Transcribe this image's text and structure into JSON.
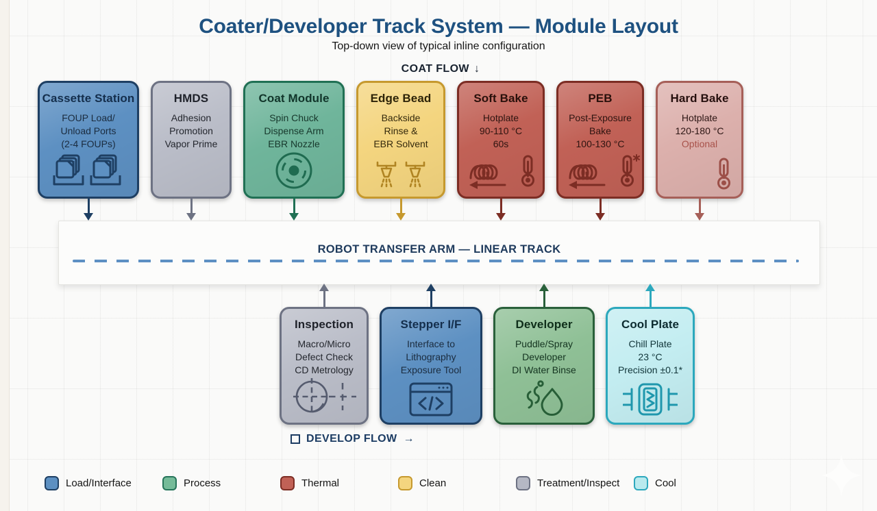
{
  "page": {
    "title": "Coater/Developer Track System — Module Layout",
    "subtitle": "Top-down view of typical inline configuration"
  },
  "flow_labels": {
    "coat": "COAT FLOW",
    "coat_arrow": "↓",
    "develop": "DEVELOP FLOW",
    "develop_arrow": "→"
  },
  "track": {
    "label": "ROBOT TRANSFER ARM — LINEAR TRACK",
    "dash_color": "#5d8fc3"
  },
  "top_modules": [
    {
      "id": "cassette-station",
      "title": "Cassette Station",
      "lines": [
        "FOUP Load/",
        "Unload Ports",
        "(2-4 FOUPs)"
      ],
      "icon": "foup-stack-icon",
      "width": 148,
      "colors": {
        "fill": "#5d90c2",
        "border": "#1e3f63",
        "title": "#142e4c",
        "text": "#1b2c3f",
        "icon": "#1e3f63"
      }
    },
    {
      "id": "hmds",
      "title": "HMDS",
      "lines": [
        "Adhesion",
        "Promotion",
        "Vapor Prime"
      ],
      "icon": "",
      "width": 118,
      "colors": {
        "fill": "#babdc8",
        "border": "#6d7283",
        "title": "#1f222a",
        "text": "#24272e",
        "icon": "#555b6e"
      }
    },
    {
      "id": "coat-module",
      "title": "Coat Module",
      "lines": [
        "Spin Chuck",
        "Dispense Arm",
        "EBR Nozzle"
      ],
      "icon": "spin-chuck-icon",
      "width": 148,
      "colors": {
        "fill": "#6fb59b",
        "border": "#207054",
        "title": "#11352a",
        "text": "#17382c",
        "icon": "#1f6b50"
      }
    },
    {
      "id": "edge-bead",
      "title": "Edge Bead",
      "lines": [
        "Backside",
        "Rinse &",
        "EBR Solvent"
      ],
      "icon": "spray-nozzles-icon",
      "width": 130,
      "colors": {
        "fill": "#f4d57f",
        "border": "#c6992e",
        "title": "#2d2308",
        "text": "#34290c",
        "icon": "#b08422"
      }
    },
    {
      "id": "soft-bake",
      "title": "Soft Bake",
      "lines": [
        "Hotplate",
        "90-110 °C",
        "60s"
      ],
      "icon": "bake-coil-icon",
      "width": 128,
      "colors": {
        "fill": "#c16156",
        "border": "#7c2d24",
        "title": "#29100b",
        "text": "#2e1410",
        "icon": "#7c2d24"
      }
    },
    {
      "id": "peb",
      "title": "PEB",
      "lines": [
        "Post-Exposure",
        "Bake",
        "100-130 °C"
      ],
      "icon": "bake-coil-asterisk-icon",
      "width": 128,
      "colors": {
        "fill": "#c16156",
        "border": "#7c2d24",
        "title": "#29100b",
        "text": "#2e1410",
        "icon": "#7c2d24"
      }
    },
    {
      "id": "hard-bake",
      "title": "Hard Bake",
      "lines": [
        "Hotplate",
        "120-180 °C"
      ],
      "note": {
        "text": "Optional",
        "color": "#a8524a"
      },
      "icon": "thermometer-icon",
      "width": 128,
      "colors": {
        "fill": "#dcb0ac",
        "border": "#a65f58",
        "title": "#26100e",
        "text": "#2d1614",
        "icon": "#9c4f48"
      }
    }
  ],
  "bottom_modules": [
    {
      "id": "inspection",
      "title": "Inspection",
      "lines": [
        "Macro/Micro",
        "Defect Check",
        "CD Metrology"
      ],
      "icon": "inspection-icon",
      "width": 130,
      "colors": {
        "fill": "#babdc8",
        "border": "#6d7283",
        "title": "#1f222a",
        "text": "#24272e",
        "icon": "#555b6e"
      }
    },
    {
      "id": "stepper-if",
      "title": "Stepper I/F",
      "lines": [
        "Interface to",
        "Lithography",
        "Exposure Tool"
      ],
      "icon": "code-window-icon",
      "width": 150,
      "colors": {
        "fill": "#5d90c2",
        "border": "#1e3f63",
        "title": "#142e4c",
        "text": "#1b2c3f",
        "icon": "#1e3f63"
      }
    },
    {
      "id": "developer",
      "title": "Developer",
      "lines": [
        "Puddle/Spray",
        "Developer",
        "DI Water Binse"
      ],
      "icon": "developer-drop-icon",
      "width": 148,
      "colors": {
        "fill": "#8fc096",
        "border": "#29603a",
        "title": "#0f2e1a",
        "text": "#143420",
        "icon": "#275e37"
      }
    },
    {
      "id": "cool-plate",
      "title": "Cool Plate",
      "lines": [
        "Chill Plate",
        "23 °C",
        "Precision ±0.1*"
      ],
      "icon": "cool-chip-icon",
      "width": 130,
      "colors": {
        "fill": "#c3edf1",
        "border": "#2ca8bd",
        "title": "#0c2b30",
        "text": "#113539",
        "icon": "#1f97ad"
      }
    }
  ],
  "legend": [
    {
      "label": "Load/Interface",
      "fill": "#5d90c2",
      "border": "#1e3f63"
    },
    {
      "label": "Process",
      "fill": "#75bb99",
      "border": "#26745a"
    },
    {
      "label": "Thermal",
      "fill": "#c16156",
      "border": "#7c2d24"
    },
    {
      "label": "Clean",
      "fill": "#f4d57f",
      "border": "#c6992e"
    },
    {
      "label": "Treatment/Inspect",
      "fill": "#b5b8c4",
      "border": "#6d7283"
    },
    {
      "label": "Cool",
      "fill": "#b9eaee",
      "border": "#2ca8bd"
    }
  ]
}
